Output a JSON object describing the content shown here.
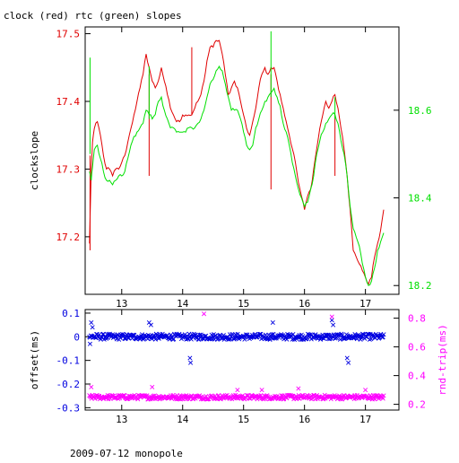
{
  "title": "clock (red) rtc (green) slopes",
  "footer": "2009-07-12 monopole",
  "colors": {
    "clock": "#e00000",
    "rtc": "#00e000",
    "offset": "#0000e0",
    "rndtrip": "#ff00ff",
    "axis": "#000000"
  },
  "chart_data": [
    {
      "type": "line",
      "title": "clock (red) rtc (green) slopes",
      "xlim": [
        12.4,
        17.55
      ],
      "x_ticks": [
        "13",
        "14",
        "15",
        "16",
        "17"
      ],
      "y_left": {
        "label": "clockslope",
        "ylim": [
          17.115,
          17.51
        ],
        "ticks": [
          "17.2",
          "17.3",
          "17.4",
          "17.5"
        ],
        "color": "#e00000"
      },
      "y_right": {
        "label": "",
        "ylim": [
          18.18,
          18.79
        ],
        "ticks": [
          "18.2",
          "18.4",
          "18.6"
        ],
        "color": "#00e000"
      },
      "series": [
        {
          "name": "clock",
          "axis": "left",
          "color": "#e00000",
          "x": [
            12.47,
            12.5,
            12.52,
            12.55,
            12.6,
            12.65,
            12.7,
            12.75,
            12.8,
            12.85,
            12.9,
            12.95,
            13.0,
            13.05,
            13.1,
            13.15,
            13.2,
            13.25,
            13.3,
            13.35,
            13.4,
            13.45,
            13.5,
            13.55,
            13.6,
            13.65,
            13.7,
            13.75,
            13.8,
            13.85,
            13.9,
            13.95,
            14.0,
            14.05,
            14.1,
            14.15,
            14.2,
            14.25,
            14.3,
            14.35,
            14.4,
            14.45,
            14.5,
            14.55,
            14.6,
            14.65,
            14.7,
            14.75,
            14.8,
            14.85,
            14.9,
            14.95,
            15.0,
            15.05,
            15.1,
            15.15,
            15.2,
            15.25,
            15.3,
            15.35,
            15.4,
            15.45,
            15.5,
            15.55,
            15.6,
            15.65,
            15.7,
            15.75,
            15.8,
            15.85,
            15.9,
            15.95,
            16.0,
            16.05,
            16.1,
            16.15,
            16.2,
            16.25,
            16.3,
            16.35,
            16.4,
            16.45,
            16.5,
            16.55,
            16.6,
            16.65,
            16.7,
            16.75,
            16.8,
            16.85,
            16.9,
            16.95,
            17.0,
            17.05,
            17.1,
            17.15,
            17.2,
            17.25,
            17.3
          ],
          "y": [
            17.19,
            17.3,
            17.34,
            17.36,
            17.37,
            17.35,
            17.32,
            17.3,
            17.3,
            17.29,
            17.3,
            17.3,
            17.31,
            17.32,
            17.34,
            17.36,
            17.38,
            17.4,
            17.42,
            17.44,
            17.47,
            17.45,
            17.43,
            17.42,
            17.43,
            17.45,
            17.43,
            17.41,
            17.39,
            17.38,
            17.37,
            17.37,
            17.38,
            17.38,
            17.38,
            17.38,
            17.39,
            17.4,
            17.41,
            17.43,
            17.46,
            17.48,
            17.48,
            17.49,
            17.49,
            17.47,
            17.44,
            17.41,
            17.42,
            17.43,
            17.42,
            17.4,
            17.38,
            17.36,
            17.35,
            17.37,
            17.39,
            17.42,
            17.44,
            17.45,
            17.44,
            17.45,
            17.45,
            17.43,
            17.41,
            17.39,
            17.37,
            17.35,
            17.33,
            17.31,
            17.28,
            17.26,
            17.24,
            17.26,
            17.27,
            17.3,
            17.33,
            17.36,
            17.38,
            17.4,
            17.39,
            17.4,
            17.41,
            17.39,
            17.36,
            17.33,
            17.29,
            17.24,
            17.18,
            17.17,
            17.16,
            17.15,
            17.14,
            17.13,
            17.14,
            17.17,
            17.19,
            17.21,
            17.24
          ],
          "spikes": [
            {
              "x": 12.48,
              "y0": 17.32,
              "y1": 17.18
            },
            {
              "x": 13.45,
              "y0": 17.44,
              "y1": 17.29
            },
            {
              "x": 14.15,
              "y0": 17.38,
              "y1": 17.48
            },
            {
              "x": 15.45,
              "y0": 17.44,
              "y1": 17.27
            },
            {
              "x": 16.5,
              "y0": 17.38,
              "y1": 17.29
            }
          ]
        },
        {
          "name": "rtc",
          "axis": "right",
          "color": "#00e000",
          "x": [
            12.47,
            12.5,
            12.52,
            12.55,
            12.6,
            12.65,
            12.7,
            12.75,
            12.8,
            12.85,
            12.9,
            12.95,
            13.0,
            13.05,
            13.1,
            13.15,
            13.2,
            13.25,
            13.3,
            13.35,
            13.4,
            13.45,
            13.5,
            13.55,
            13.6,
            13.65,
            13.7,
            13.75,
            13.8,
            13.85,
            13.9,
            13.95,
            14.0,
            14.05,
            14.1,
            14.15,
            14.2,
            14.25,
            14.3,
            14.35,
            14.4,
            14.45,
            14.5,
            14.55,
            14.6,
            14.65,
            14.7,
            14.75,
            14.8,
            14.85,
            14.9,
            14.95,
            15.0,
            15.05,
            15.1,
            15.15,
            15.2,
            15.25,
            15.3,
            15.35,
            15.4,
            15.45,
            15.5,
            15.55,
            15.6,
            15.65,
            15.7,
            15.75,
            15.8,
            15.85,
            15.9,
            15.95,
            16.0,
            16.05,
            16.1,
            16.15,
            16.2,
            16.25,
            16.3,
            16.35,
            16.4,
            16.45,
            16.5,
            16.55,
            16.6,
            16.65,
            16.7,
            16.75,
            16.8,
            16.85,
            16.9,
            16.95,
            17.0,
            17.05,
            17.1,
            17.15,
            17.2,
            17.25,
            17.3
          ],
          "y": [
            18.46,
            18.44,
            18.47,
            18.51,
            18.52,
            18.49,
            18.46,
            18.44,
            18.44,
            18.43,
            18.44,
            18.45,
            18.45,
            18.46,
            18.49,
            18.52,
            18.54,
            18.55,
            18.56,
            18.57,
            18.6,
            18.59,
            18.58,
            18.59,
            18.62,
            18.63,
            18.6,
            18.58,
            18.56,
            18.56,
            18.55,
            18.55,
            18.55,
            18.55,
            18.56,
            18.56,
            18.56,
            18.57,
            18.58,
            18.6,
            18.63,
            18.66,
            18.67,
            18.69,
            18.7,
            18.69,
            18.66,
            18.63,
            18.6,
            18.6,
            18.6,
            18.58,
            18.55,
            18.52,
            18.51,
            18.52,
            18.56,
            18.58,
            18.6,
            18.62,
            18.63,
            18.64,
            18.65,
            18.63,
            18.61,
            18.57,
            18.55,
            18.52,
            18.48,
            18.45,
            18.42,
            18.4,
            18.38,
            18.39,
            18.42,
            18.45,
            18.5,
            18.53,
            18.55,
            18.57,
            18.58,
            18.59,
            18.59,
            18.57,
            18.53,
            18.5,
            18.45,
            18.38,
            18.33,
            18.31,
            18.29,
            18.25,
            18.22,
            18.2,
            18.21,
            18.24,
            18.28,
            18.3,
            18.32
          ],
          "spikes": [
            {
              "x": 12.48,
              "y0": 18.5,
              "y1": 18.72
            },
            {
              "x": 13.45,
              "y0": 18.58,
              "y1": 18.7
            },
            {
              "x": 15.45,
              "y0": 18.63,
              "y1": 18.78
            },
            {
              "x": 16.5,
              "y0": 18.58,
              "y1": 18.63
            }
          ]
        }
      ]
    },
    {
      "type": "scatter",
      "xlim": [
        12.4,
        17.55
      ],
      "x_ticks": [
        "13",
        "14",
        "15",
        "16",
        "17"
      ],
      "y_left": {
        "label": "offset(ms)",
        "ylim": [
          -0.31,
          0.115
        ],
        "ticks": [
          "0.1",
          "0",
          "-0.1",
          "-0.2",
          "-0.3"
        ],
        "color": "#0000e0"
      },
      "y_right": {
        "label": "rnd-trip(ms)",
        "ylim": [
          0.16,
          0.86
        ],
        "ticks": [
          "0.8",
          "0.6",
          "0.4",
          "0.2"
        ],
        "color": "#ff00ff"
      },
      "series": [
        {
          "name": "offset",
          "axis": "left",
          "color": "#0000e0",
          "marker": "x",
          "x_range": [
            12.47,
            17.3
          ],
          "center": 0.0,
          "spread": 0.012,
          "outliers": [
            {
              "x": 12.5,
              "y": 0.06
            },
            {
              "x": 12.52,
              "y": 0.04
            },
            {
              "x": 13.45,
              "y": 0.06
            },
            {
              "x": 13.48,
              "y": 0.05
            },
            {
              "x": 14.12,
              "y": -0.09
            },
            {
              "x": 14.13,
              "y": -0.11
            },
            {
              "x": 15.48,
              "y": 0.06
            },
            {
              "x": 16.45,
              "y": 0.07
            },
            {
              "x": 16.47,
              "y": 0.05
            },
            {
              "x": 16.7,
              "y": -0.09
            },
            {
              "x": 16.72,
              "y": -0.11
            },
            {
              "x": 12.48,
              "y": -0.03
            }
          ]
        },
        {
          "name": "rnd-trip",
          "axis": "right",
          "color": "#ff00ff",
          "marker": "x",
          "x_range": [
            12.47,
            17.3
          ],
          "center": 0.25,
          "spread": 0.015,
          "outliers": [
            {
              "x": 14.35,
              "y": 0.83
            },
            {
              "x": 16.45,
              "y": 0.81
            },
            {
              "x": 12.5,
              "y": 0.32
            },
            {
              "x": 13.5,
              "y": 0.32
            },
            {
              "x": 14.9,
              "y": 0.3
            },
            {
              "x": 15.3,
              "y": 0.3
            },
            {
              "x": 15.9,
              "y": 0.31
            },
            {
              "x": 17.0,
              "y": 0.3
            }
          ]
        }
      ]
    }
  ]
}
